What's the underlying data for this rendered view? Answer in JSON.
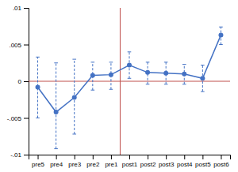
{
  "chart_data": {
    "type": "line",
    "categories": [
      "pre5",
      "pre4",
      "pre3",
      "pre2",
      "pre1",
      "post1",
      "post2",
      "post3",
      "post4",
      "post5",
      "post6"
    ],
    "values": [
      -0.0008,
      -0.0042,
      -0.0022,
      0.0008,
      0.0009,
      0.0022,
      0.0012,
      0.0011,
      0.001,
      0.0004,
      0.0063
    ],
    "ci_upper": [
      0.0033,
      0.0025,
      0.003,
      0.0026,
      0.0026,
      0.004,
      0.0026,
      0.0026,
      0.0023,
      0.0022,
      0.0074
    ],
    "ci_lower": [
      -0.005,
      -0.0092,
      -0.0072,
      -0.0012,
      -0.0011,
      0.0004,
      -0.0004,
      -0.0004,
      -0.0004,
      -0.0014,
      0.005
    ],
    "color": "#4472C4",
    "marker": "circle",
    "reference_lines": [
      {
        "axis": "y",
        "value": 0,
        "color": "#C0504D"
      },
      {
        "axis": "x",
        "value": 4.5,
        "color": "#C0504D"
      }
    ],
    "ylim": [
      -0.01,
      0.01
    ],
    "yticks": [
      {
        "value": -0.01,
        "label": "-.01"
      },
      {
        "value": -0.005,
        "label": "-.005"
      },
      0,
      {
        "value": 0.005,
        "label": ".005"
      },
      {
        "value": 0.01,
        "label": ".01"
      }
    ],
    "grid": false
  }
}
